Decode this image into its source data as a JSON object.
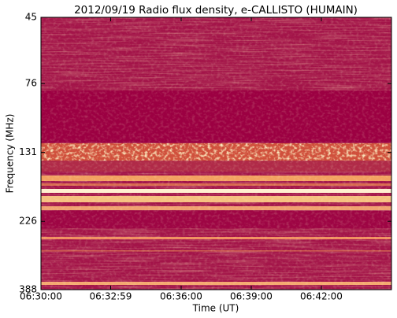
{
  "chart_data": {
    "type": "spectrogram",
    "title": "2012/09/19  Radio flux density, e-CALLISTO (HUMAIN)",
    "x_label": "Time (UT)",
    "y_label": "Frequency (MHz)",
    "xlim": [
      23400,
      24300
    ],
    "xticks": [
      {
        "value": 23400,
        "label": "06:30:00"
      },
      {
        "value": 23579,
        "label": "06:32:59"
      },
      {
        "value": 23760,
        "label": "06:36:00"
      },
      {
        "value": 23940,
        "label": "06:39:00"
      },
      {
        "value": 24120,
        "label": "06:42:00"
      }
    ],
    "ylim": [
      388,
      45
    ],
    "yticks": [
      45,
      76,
      131,
      226,
      388
    ],
    "log_y": true
  }
}
